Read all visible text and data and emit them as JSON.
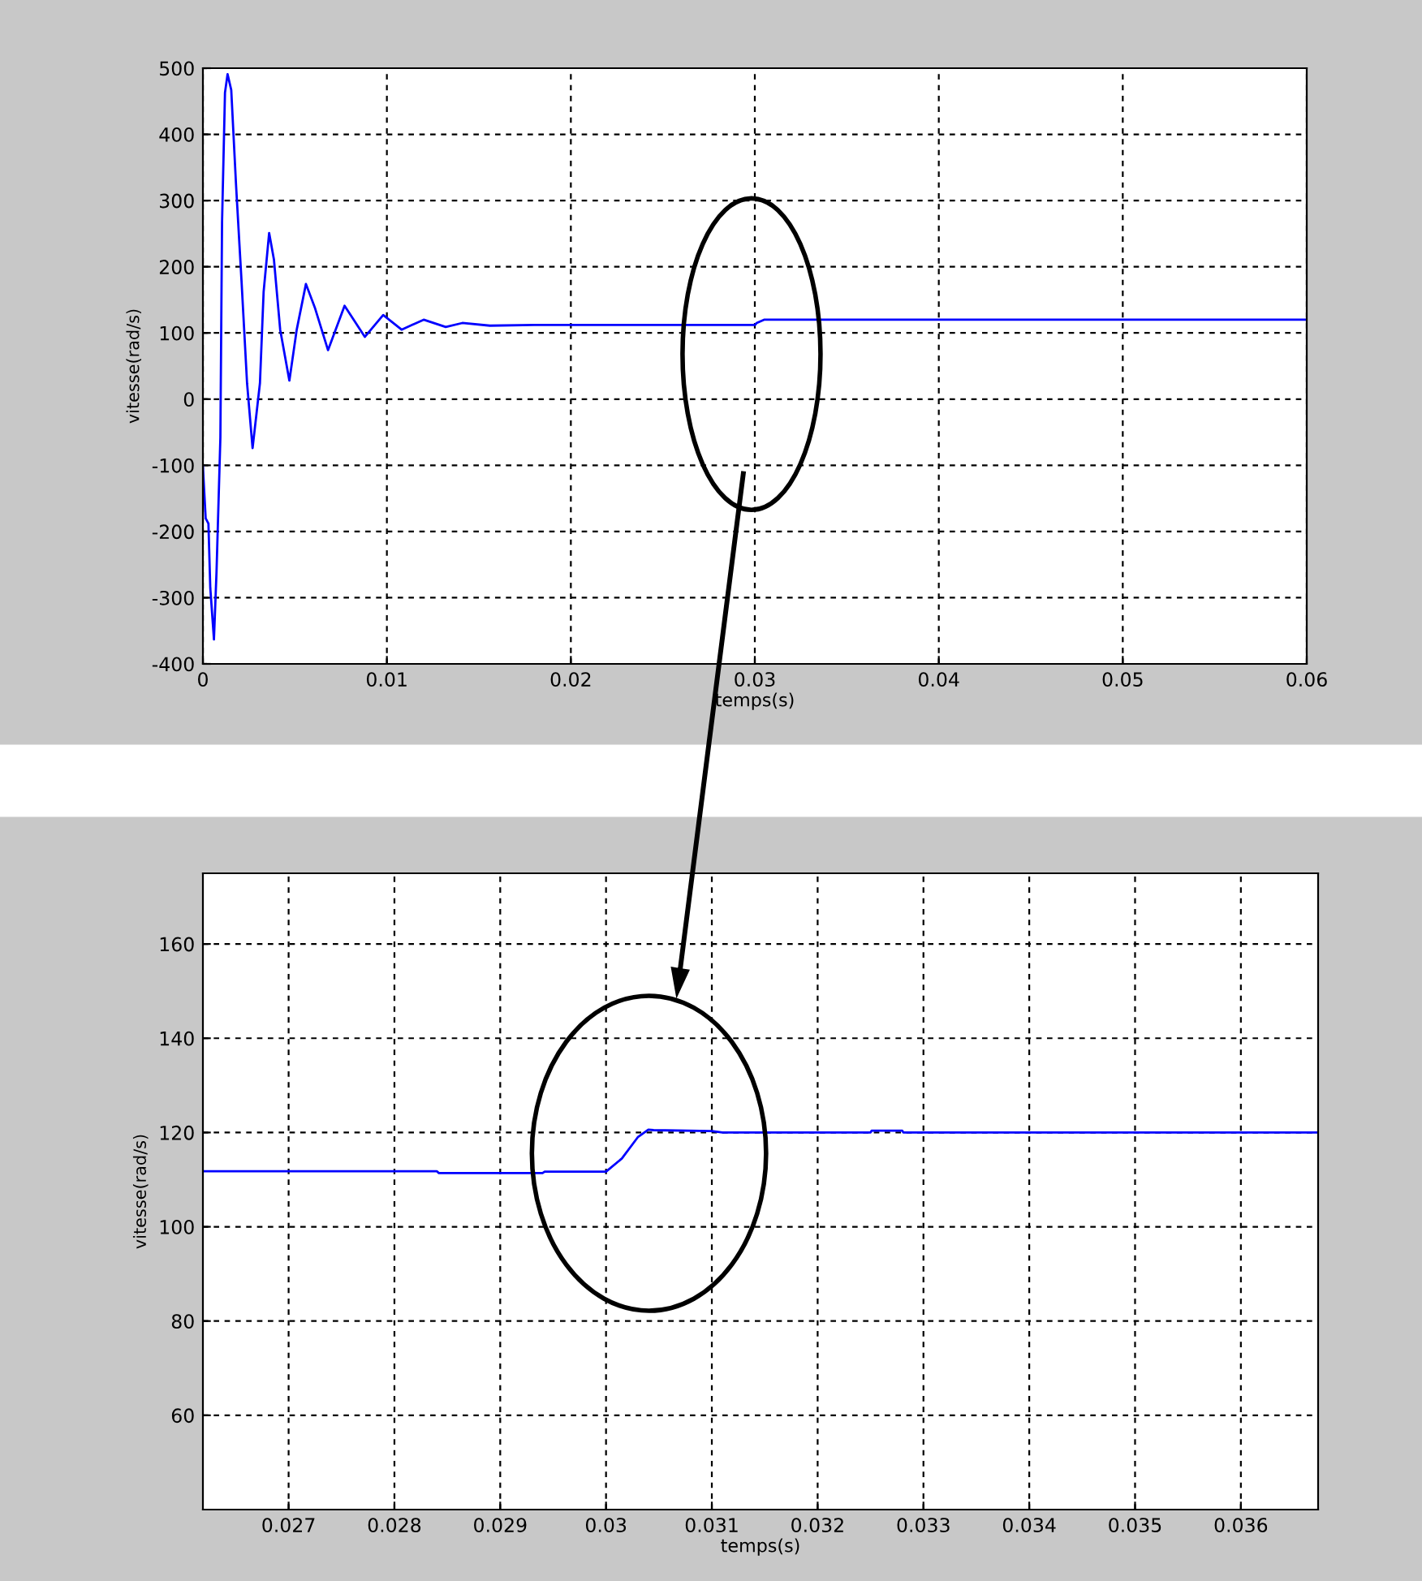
{
  "chart_data": [
    {
      "type": "line",
      "xlabel": "temps(s)",
      "ylabel": "vitesse(rad/s)",
      "xlim": [
        0,
        0.06
      ],
      "ylim": [
        -400,
        500
      ],
      "xticks": [
        0,
        0.01,
        0.02,
        0.03,
        0.04,
        0.05,
        0.06
      ],
      "yticks": [
        -400,
        -300,
        -200,
        -100,
        0,
        100,
        200,
        300,
        400,
        500
      ],
      "grid": true,
      "line_style": "solid",
      "marker": "none",
      "series": [
        {
          "color": "#0000ff",
          "x": [
            0,
            0.00015,
            0.0003,
            0.0004,
            0.0006,
            0.00074,
            0.00095,
            0.00104,
            0.0012,
            0.00134,
            0.00154,
            0.0018,
            0.0021,
            0.0024,
            0.0027,
            0.0031,
            0.0033,
            0.0036,
            0.00386,
            0.0042,
            0.0047,
            0.0051,
            0.0056,
            0.0061,
            0.0068,
            0.0077,
            0.0088,
            0.0098,
            0.0108,
            0.012,
            0.0132,
            0.0141,
            0.0156,
            0.018,
            0.03,
            0.0301,
            0.0305,
            0.06
          ],
          "values": [
            -102,
            -180,
            -188,
            -285,
            -363,
            -261,
            -58,
            267,
            463,
            491,
            467,
            324,
            178,
            24,
            -74,
            24,
            162,
            251,
            211,
            105,
            28,
            105,
            174,
            137,
            74,
            141,
            94,
            127,
            105,
            120,
            109,
            115,
            111,
            112,
            112,
            115,
            120,
            120
          ]
        }
      ]
    },
    {
      "type": "line",
      "xlabel": "temps(s)",
      "ylabel": "vitesse(rad/s)",
      "xlim": [
        0.02619,
        0.03673
      ],
      "ylim": [
        40,
        175
      ],
      "xticks": [
        0.027,
        0.028,
        0.029,
        0.03,
        0.031,
        0.032,
        0.033,
        0.034,
        0.035,
        0.036
      ],
      "yticks": [
        60,
        80,
        100,
        120,
        140,
        160
      ],
      "grid": true,
      "line_style": "solid",
      "marker": "none",
      "series": [
        {
          "color": "#0000ff",
          "x": [
            0.02619,
            0.0284,
            0.02842,
            0.0294,
            0.02942,
            0.03,
            0.03015,
            0.0303,
            0.0304,
            0.03045,
            0.031,
            0.0311,
            0.0325,
            0.03251,
            0.0328,
            0.03281,
            0.03673
          ],
          "values": [
            111.8,
            111.8,
            111.4,
            111.4,
            111.7,
            111.7,
            114.5,
            119,
            120.6,
            120.5,
            120.3,
            120,
            120,
            120.4,
            120.4,
            120,
            120
          ]
        }
      ]
    }
  ]
}
